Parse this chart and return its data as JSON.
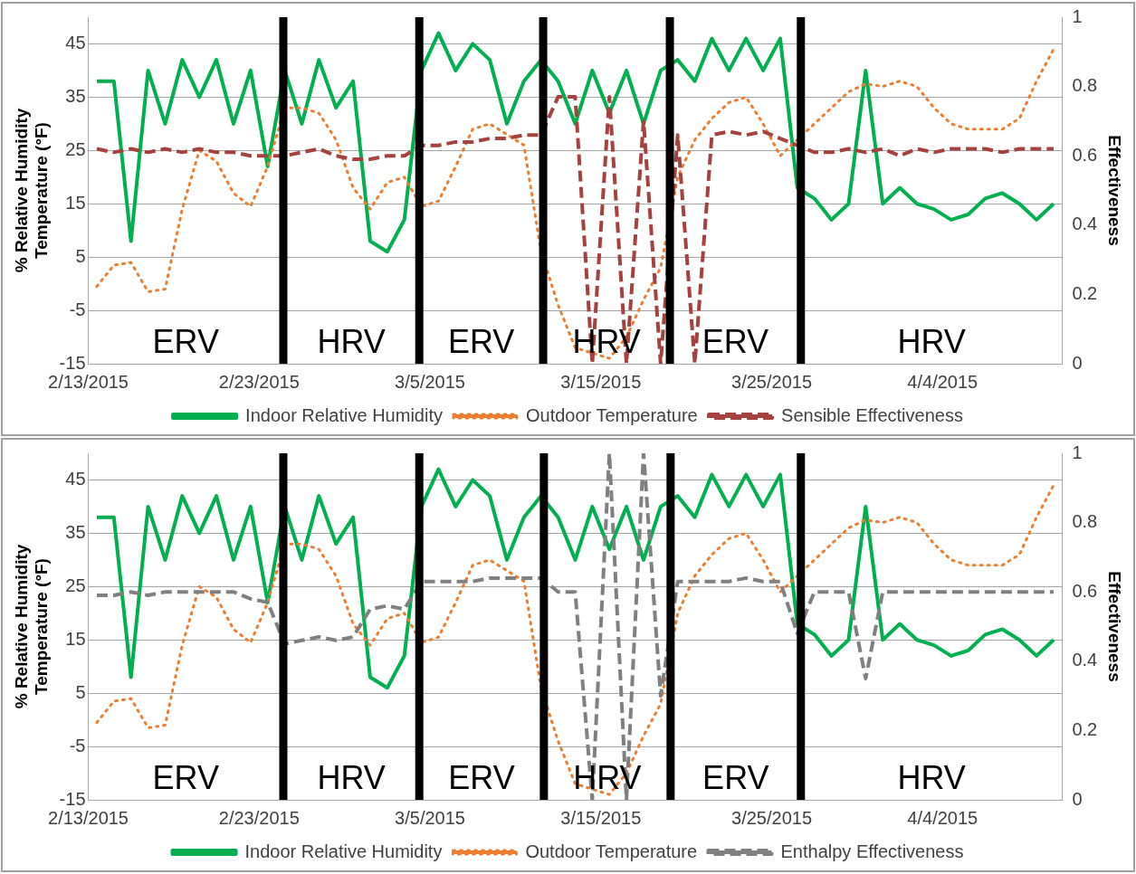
{
  "chart_data": [
    {
      "type": "line",
      "xlabel": null,
      "ylabel": "% Relative Humidity\nTemperature (°F)",
      "y2label": "Effectiveness",
      "x": [
        "2015-02-13T12:00",
        "2015-02-14T12:00",
        "2015-02-15T12:00",
        "2015-02-16T12:00",
        "2015-02-17T12:00",
        "2015-02-18T12:00",
        "2015-02-19T12:00",
        "2015-02-20T12:00",
        "2015-02-21T12:00",
        "2015-02-22T12:00",
        "2015-02-23T12:00",
        "2015-02-24T12:00",
        "2015-02-25T12:00",
        "2015-02-26T12:00",
        "2015-02-27T12:00",
        "2015-02-28T12:00",
        "2015-03-01T12:00",
        "2015-03-02T12:00",
        "2015-03-03T12:00",
        "2015-03-04T12:00",
        "2015-03-05T12:00",
        "2015-03-06T12:00",
        "2015-03-07T12:00",
        "2015-03-08T12:00",
        "2015-03-09T12:00",
        "2015-03-10T12:00",
        "2015-03-11T12:00",
        "2015-03-12T12:00",
        "2015-03-13T12:00",
        "2015-03-14T12:00",
        "2015-03-15T12:00",
        "2015-03-16T12:00",
        "2015-03-17T12:00",
        "2015-03-18T12:00",
        "2015-03-19T12:00",
        "2015-03-20T12:00",
        "2015-03-21T12:00",
        "2015-03-22T12:00",
        "2015-03-23T12:00",
        "2015-03-24T12:00",
        "2015-03-25T12:00",
        "2015-03-26T12:00",
        "2015-03-27T12:00",
        "2015-03-28T12:00",
        "2015-03-29T12:00",
        "2015-03-30T12:00",
        "2015-03-31T12:00",
        "2015-04-01T12:00",
        "2015-04-02T12:00",
        "2015-04-03T12:00",
        "2015-04-04T12:00",
        "2015-04-05T12:00",
        "2015-04-06T12:00",
        "2015-04-07T12:00",
        "2015-04-08T12:00",
        "2015-04-09T12:00",
        "2015-04-10T12:00"
      ],
      "series": [
        {
          "name": "Indoor Relative Humidity",
          "color": "#00b050",
          "line_style": "solid",
          "values": [
            38,
            38,
            8,
            40,
            30,
            42,
            35,
            42,
            30,
            40,
            22,
            40,
            30,
            42,
            33,
            38,
            8,
            6,
            12,
            40,
            47,
            40,
            45,
            42,
            30,
            38,
            42,
            38,
            30,
            40,
            32,
            40,
            30,
            40,
            42,
            38,
            46,
            40,
            46,
            40,
            46,
            18,
            16,
            12,
            15,
            40,
            15,
            18,
            15,
            14,
            12,
            13,
            16,
            17,
            15,
            12,
            15
          ]
        },
        {
          "name": "Outdoor Temperature",
          "color": "#ed7d31",
          "line_style": "dotted",
          "values": [
            -0.5,
            3.5,
            4,
            -1.5,
            -1,
            14,
            25,
            23,
            17,
            14.5,
            22,
            33,
            33,
            32,
            27,
            18,
            14,
            19,
            20,
            14.5,
            15.5,
            22,
            29,
            30,
            28,
            26,
            6,
            -4,
            -12,
            -13,
            -14,
            -10,
            -3,
            3,
            20,
            27,
            31,
            34,
            35,
            30,
            24,
            27,
            30,
            33,
            36,
            37.5,
            37,
            38,
            37,
            33,
            30,
            29,
            29,
            29,
            31,
            38,
            44
          ]
        },
        {
          "name": "Sensible Effectiveness",
          "color": "#a5423f",
          "line_style": "dashed",
          "axis": "y2",
          "values": [
            0.62,
            0.61,
            0.62,
            0.61,
            0.62,
            0.61,
            0.62,
            0.61,
            0.61,
            0.6,
            0.6,
            0.6,
            0.61,
            0.62,
            0.6,
            0.59,
            0.59,
            0.6,
            0.6,
            0.63,
            0.63,
            0.64,
            0.64,
            0.65,
            0.65,
            0.66,
            0.66,
            0.77,
            0.77,
            0,
            0.77,
            0,
            0.7,
            0,
            0.66,
            0,
            0.66,
            0.67,
            0.66,
            0.67,
            0.65,
            0.63,
            0.61,
            0.61,
            0.62,
            0.61,
            0.62,
            0.6,
            0.62,
            0.61,
            0.62,
            0.62,
            0.62,
            0.61,
            0.62,
            0.62,
            0.62
          ]
        }
      ],
      "xlim": [
        "2015-02-13",
        "2015-04-11"
      ],
      "xticks": [
        {
          "value": "2015-02-13",
          "label": "2/13/2015"
        },
        {
          "value": "2015-02-23",
          "label": "2/23/2015"
        },
        {
          "value": "2015-03-05",
          "label": "3/5/2015"
        },
        {
          "value": "2015-03-15",
          "label": "3/15/2015"
        },
        {
          "value": "2015-03-25",
          "label": "3/25/2015"
        },
        {
          "value": "2015-04-04",
          "label": "4/4/2015"
        }
      ],
      "ylim": [
        -15,
        50
      ],
      "yticks": [
        -15,
        -5,
        5,
        15,
        25,
        35,
        45
      ],
      "y2lim": [
        0,
        1
      ],
      "y2ticks": [
        0,
        0.2,
        0.4,
        0.6,
        0.8,
        1
      ],
      "grid": "y",
      "legend": "bottom",
      "ref_lines": [
        {
          "axis": "x",
          "value": "2015-02-24T10:00",
          "color": "#000000"
        },
        {
          "axis": "x",
          "value": "2015-03-04T09:00",
          "color": "#000000"
        },
        {
          "axis": "x",
          "value": "2015-03-11T15:00",
          "color": "#000000"
        },
        {
          "axis": "x",
          "value": "2015-03-19T01:00",
          "color": "#000000"
        },
        {
          "axis": "x",
          "value": "2015-03-26T17:00",
          "color": "#000000"
        }
      ],
      "annotations": [
        "ERV",
        "HRV",
        "ERV",
        "HRV",
        "ERV",
        "HRV"
      ]
    },
    {
      "type": "line",
      "ylabel": "% Relative Humidity\nTemperature (°F)",
      "y2label": "Effectiveness",
      "x": [
        "2015-02-13T12:00",
        "2015-02-14T12:00",
        "2015-02-15T12:00",
        "2015-02-16T12:00",
        "2015-02-17T12:00",
        "2015-02-18T12:00",
        "2015-02-19T12:00",
        "2015-02-20T12:00",
        "2015-02-21T12:00",
        "2015-02-22T12:00",
        "2015-02-23T12:00",
        "2015-02-24T12:00",
        "2015-02-25T12:00",
        "2015-02-26T12:00",
        "2015-02-27T12:00",
        "2015-02-28T12:00",
        "2015-03-01T12:00",
        "2015-03-02T12:00",
        "2015-03-03T12:00",
        "2015-03-04T12:00",
        "2015-03-05T12:00",
        "2015-03-06T12:00",
        "2015-03-07T12:00",
        "2015-03-08T12:00",
        "2015-03-09T12:00",
        "2015-03-10T12:00",
        "2015-03-11T12:00",
        "2015-03-12T12:00",
        "2015-03-13T12:00",
        "2015-03-14T12:00",
        "2015-03-15T12:00",
        "2015-03-16T12:00",
        "2015-03-17T12:00",
        "2015-03-18T12:00",
        "2015-03-19T12:00",
        "2015-03-20T12:00",
        "2015-03-21T12:00",
        "2015-03-22T12:00",
        "2015-03-23T12:00",
        "2015-03-24T12:00",
        "2015-03-25T12:00",
        "2015-03-26T12:00",
        "2015-03-27T12:00",
        "2015-03-28T12:00",
        "2015-03-29T12:00",
        "2015-03-30T12:00",
        "2015-03-31T12:00",
        "2015-04-01T12:00",
        "2015-04-02T12:00",
        "2015-04-03T12:00",
        "2015-04-04T12:00",
        "2015-04-05T12:00",
        "2015-04-06T12:00",
        "2015-04-07T12:00",
        "2015-04-08T12:00",
        "2015-04-09T12:00",
        "2015-04-10T12:00"
      ],
      "series": [
        {
          "name": "Indoor Relative Humidity",
          "color": "#00b050",
          "line_style": "solid",
          "values": [
            38,
            38,
            8,
            40,
            30,
            42,
            35,
            42,
            30,
            40,
            22,
            40,
            30,
            42,
            33,
            38,
            8,
            6,
            12,
            40,
            47,
            40,
            45,
            42,
            30,
            38,
            42,
            38,
            30,
            40,
            32,
            40,
            30,
            40,
            42,
            38,
            46,
            40,
            46,
            40,
            46,
            18,
            16,
            12,
            15,
            40,
            15,
            18,
            15,
            14,
            12,
            13,
            16,
            17,
            15,
            12,
            15
          ]
        },
        {
          "name": "Outdoor Temperature",
          "color": "#ed7d31",
          "line_style": "dotted",
          "values": [
            -0.5,
            3.5,
            4,
            -1.5,
            -1,
            14,
            25,
            23,
            17,
            14.5,
            22,
            33,
            33,
            32,
            27,
            18,
            14,
            19,
            20,
            14.5,
            15.5,
            22,
            29,
            30,
            28,
            26,
            6,
            -4,
            -12,
            -13,
            -14,
            -10,
            -3,
            3,
            20,
            27,
            31,
            34,
            35,
            30,
            24,
            27,
            30,
            33,
            36,
            37.5,
            37,
            38,
            37,
            33,
            30,
            29,
            29,
            29,
            31,
            38,
            44
          ]
        },
        {
          "name": "Enthalpy Effectiveness",
          "color": "#808080",
          "line_style": "dashed",
          "axis": "y2",
          "values": [
            0.59,
            0.59,
            0.6,
            0.59,
            0.6,
            0.6,
            0.6,
            0.6,
            0.6,
            0.58,
            0.57,
            0.45,
            0.46,
            0.47,
            0.46,
            0.47,
            0.55,
            0.56,
            0.55,
            0.63,
            0.63,
            0.63,
            0.63,
            0.64,
            0.64,
            0.64,
            0.64,
            0.6,
            0.6,
            0,
            1,
            0,
            1,
            0.3,
            0.63,
            0.63,
            0.63,
            0.63,
            0.64,
            0.63,
            0.63,
            0.48,
            0.6,
            0.6,
            0.6,
            0.35,
            0.6,
            0.6,
            0.6,
            0.6,
            0.6,
            0.6,
            0.6,
            0.6,
            0.6,
            0.6,
            0.6
          ]
        }
      ],
      "xlim": [
        "2015-02-13",
        "2015-04-11"
      ],
      "xticks": [
        {
          "value": "2015-02-13",
          "label": "2/13/2015"
        },
        {
          "value": "2015-02-23",
          "label": "2/23/2015"
        },
        {
          "value": "2015-03-05",
          "label": "3/5/2015"
        },
        {
          "value": "2015-03-15",
          "label": "3/15/2015"
        },
        {
          "value": "2015-03-25",
          "label": "3/25/2015"
        },
        {
          "value": "2015-04-04",
          "label": "4/4/2015"
        }
      ],
      "ylim": [
        -15,
        50
      ],
      "yticks": [
        -15,
        -5,
        5,
        15,
        25,
        35,
        45
      ],
      "y2lim": [
        0,
        1
      ],
      "y2ticks": [
        0,
        0.2,
        0.4,
        0.6,
        0.8,
        1
      ],
      "grid": "y",
      "legend": "bottom",
      "ref_lines": [
        {
          "axis": "x",
          "value": "2015-02-24T10:00",
          "color": "#000000"
        },
        {
          "axis": "x",
          "value": "2015-03-04T09:00",
          "color": "#000000"
        },
        {
          "axis": "x",
          "value": "2015-03-11T16:00",
          "color": "#000000"
        },
        {
          "axis": "x",
          "value": "2015-03-19T02:00",
          "color": "#000000"
        },
        {
          "axis": "x",
          "value": "2015-03-26T17:00",
          "color": "#000000"
        }
      ],
      "annotations": [
        "ERV",
        "HRV",
        "ERV",
        "HRV",
        "ERV",
        "HRV"
      ]
    }
  ]
}
